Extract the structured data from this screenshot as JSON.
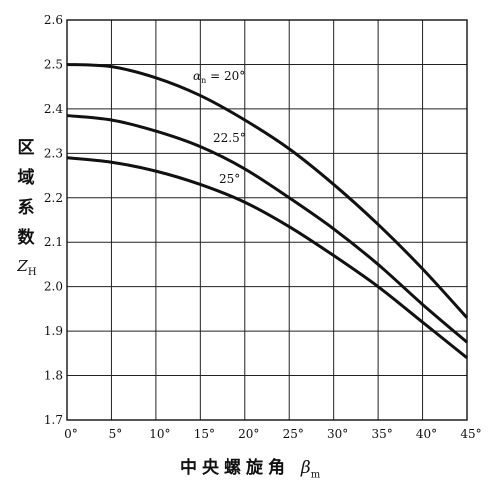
{
  "chart_data": {
    "type": "line",
    "xlabel": "中央螺旋角",
    "xlabel_symbol": "β",
    "xlabel_symbol_sub": "m",
    "ylabel_chars": [
      "区",
      "域",
      "系",
      "数"
    ],
    "ylabel_symbol": "Z",
    "ylabel_symbol_sub": "H",
    "xlim": [
      0,
      45
    ],
    "ylim": [
      1.7,
      2.6
    ],
    "x_ticks": [
      0,
      5,
      10,
      15,
      20,
      25,
      30,
      35,
      40,
      45
    ],
    "x_tick_labels": [
      "0°",
      "5°",
      "10°",
      "15°",
      "20°",
      "25°",
      "30°",
      "35°",
      "40°",
      "45°"
    ],
    "y_ticks": [
      1.7,
      1.8,
      1.9,
      2.0,
      2.1,
      2.2,
      2.3,
      2.4,
      2.5,
      2.6
    ],
    "y_tick_labels": [
      "1.7",
      "1.8",
      "1.9",
      "2.0",
      "2.1",
      "2.2",
      "2.3",
      "2.4",
      "2.5",
      "2.6"
    ],
    "grid": true,
    "x": [
      0,
      5,
      10,
      15,
      20,
      25,
      30,
      35,
      40,
      45
    ],
    "series": [
      {
        "name": "αn = 20°",
        "label_symbol": "α",
        "label_sub": "n",
        "label_value": " = 20°",
        "values": [
          2.5,
          2.495,
          2.47,
          2.43,
          2.375,
          2.31,
          2.23,
          2.14,
          2.04,
          1.93
        ]
      },
      {
        "name": "22.5°",
        "label_symbol": "",
        "label_sub": "",
        "label_value": "22.5°",
        "values": [
          2.385,
          2.375,
          2.35,
          2.315,
          2.265,
          2.2,
          2.13,
          2.05,
          1.96,
          1.875
        ]
      },
      {
        "name": "25°",
        "label_symbol": "",
        "label_sub": "",
        "label_value": "25°",
        "values": [
          2.29,
          2.28,
          2.26,
          2.23,
          2.19,
          2.135,
          2.07,
          2.0,
          1.92,
          1.84
        ]
      }
    ]
  }
}
